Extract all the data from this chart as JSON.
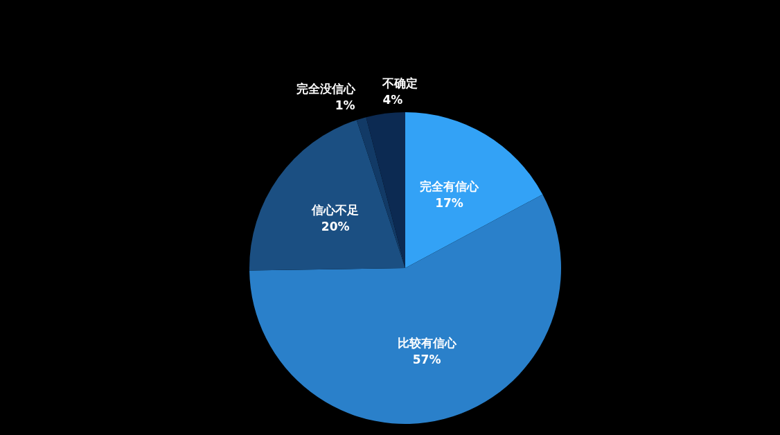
{
  "chart_data": {
    "type": "pie",
    "categories": [
      "完全有信心",
      "比较有信心",
      "信心不足",
      "完全没信心",
      "不确定"
    ],
    "values": [
      17,
      57,
      20,
      1,
      4
    ],
    "value_labels": [
      "17%",
      "57%",
      "20%",
      "1%",
      "4%"
    ],
    "colors": [
      "#33a2f6",
      "#2a80ca",
      "#1b4f82",
      "#123a66",
      "#0c2a52"
    ]
  }
}
